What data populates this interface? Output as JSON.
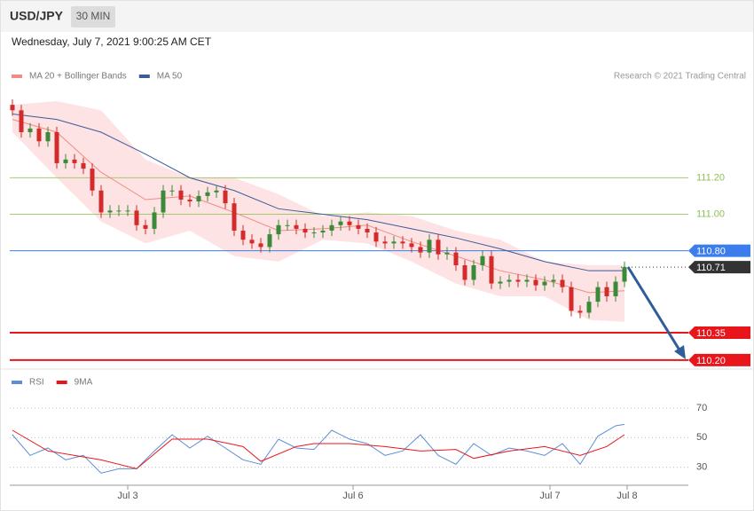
{
  "header": {
    "symbol": "USD/JPY",
    "timeframe": "30 MIN",
    "timestamp": "Wednesday, July 7, 2021 9:00:25 AM CET"
  },
  "chart_data": [
    {
      "type": "candlestick",
      "source": "Research © 2021 Trading Central",
      "xlim": [
        -0.3,
        76.2
      ],
      "ylim": [
        110.18,
        111.63
      ],
      "candles": {
        "open": [
          111.6,
          111.57,
          111.45,
          111.47,
          111.4,
          111.45,
          111.28,
          111.3,
          111.28,
          111.25,
          111.13,
          111.01,
          111.02,
          111.02,
          111.02,
          110.94,
          110.92,
          111.01,
          111.13,
          111.13,
          111.08,
          111.07,
          111.1,
          111.12,
          111.13,
          111.06,
          110.91,
          110.86,
          110.84,
          110.82,
          110.89,
          110.94,
          110.94,
          110.92,
          110.9,
          110.9,
          110.91,
          110.94,
          110.96,
          110.94,
          110.92,
          110.9,
          110.85,
          110.84,
          110.85,
          110.84,
          110.82,
          110.79,
          110.86,
          110.78,
          110.79,
          110.72,
          110.64,
          110.72,
          110.77,
          110.62,
          110.63,
          110.64,
          110.63,
          110.64,
          110.61,
          110.63,
          110.64,
          110.6,
          110.47,
          110.46,
          110.52,
          110.6,
          110.55,
          110.63
        ],
        "high": [
          111.63,
          111.6,
          111.5,
          111.5,
          111.48,
          111.48,
          111.33,
          111.33,
          111.31,
          111.28,
          111.16,
          111.05,
          111.05,
          111.05,
          111.05,
          110.97,
          111.04,
          111.16,
          111.16,
          111.16,
          111.11,
          111.13,
          111.15,
          111.16,
          111.16,
          111.09,
          110.94,
          110.89,
          110.87,
          110.92,
          110.97,
          110.97,
          110.97,
          110.95,
          110.93,
          110.94,
          110.97,
          110.99,
          110.99,
          110.97,
          110.95,
          110.93,
          110.88,
          110.88,
          110.88,
          110.87,
          110.85,
          110.89,
          110.89,
          110.82,
          110.82,
          110.75,
          110.75,
          110.8,
          110.8,
          110.66,
          110.67,
          110.67,
          110.67,
          110.67,
          110.66,
          110.67,
          110.67,
          110.63,
          110.5,
          110.55,
          110.63,
          110.63,
          110.66,
          110.74
        ],
        "low": [
          111.54,
          111.42,
          111.42,
          111.37,
          111.37,
          111.25,
          111.25,
          111.25,
          111.22,
          111.1,
          110.98,
          110.98,
          110.99,
          110.99,
          110.91,
          110.89,
          110.89,
          110.98,
          111.1,
          111.05,
          111.04,
          111.04,
          111.07,
          111.09,
          111.03,
          110.88,
          110.83,
          110.81,
          110.79,
          110.79,
          110.86,
          110.91,
          110.89,
          110.87,
          110.87,
          110.87,
          110.88,
          110.91,
          110.91,
          110.89,
          110.87,
          110.82,
          110.81,
          110.81,
          110.81,
          110.79,
          110.76,
          110.76,
          110.75,
          110.75,
          110.69,
          110.61,
          110.61,
          110.69,
          110.59,
          110.59,
          110.6,
          110.6,
          110.6,
          110.58,
          110.58,
          110.6,
          110.57,
          110.44,
          110.43,
          110.43,
          110.49,
          110.52,
          110.52,
          110.6
        ],
        "close": [
          111.57,
          111.45,
          111.47,
          111.4,
          111.45,
          111.28,
          111.3,
          111.28,
          111.25,
          111.13,
          111.01,
          111.02,
          111.02,
          111.02,
          110.94,
          110.92,
          111.01,
          111.13,
          111.13,
          111.08,
          111.07,
          111.1,
          111.12,
          111.13,
          111.06,
          110.91,
          110.86,
          110.84,
          110.82,
          110.89,
          110.94,
          110.94,
          110.92,
          110.9,
          110.9,
          110.91,
          110.94,
          110.96,
          110.94,
          110.92,
          110.9,
          110.85,
          110.84,
          110.85,
          110.84,
          110.82,
          110.79,
          110.86,
          110.78,
          110.79,
          110.72,
          110.64,
          110.72,
          110.77,
          110.62,
          110.63,
          110.64,
          110.63,
          110.64,
          110.61,
          110.63,
          110.64,
          110.6,
          110.47,
          110.46,
          110.52,
          110.6,
          110.55,
          110.63,
          110.71
        ],
        "up_color": "#3a8a3a",
        "down_color": "#d42a2a"
      },
      "series": [
        {
          "name": "MA 20 + Bollinger Bands",
          "color": "#f28b82",
          "band_color": "#fde3e3",
          "x": [
            0,
            5,
            10,
            15,
            20,
            25,
            30,
            35,
            40,
            45,
            50,
            55,
            60,
            65,
            69
          ],
          "values": [
            111.52,
            111.45,
            111.23,
            111.08,
            111.1,
            111.01,
            110.91,
            110.92,
            110.94,
            110.85,
            110.77,
            110.69,
            110.64,
            110.57,
            110.58
          ],
          "upper": [
            111.6,
            111.62,
            111.57,
            111.3,
            111.2,
            111.2,
            111.11,
            110.99,
            111.01,
            110.99,
            110.91,
            110.86,
            110.74,
            110.72,
            110.72
          ],
          "lower": [
            111.45,
            111.2,
            110.96,
            110.84,
            110.91,
            110.77,
            110.74,
            110.86,
            110.84,
            110.74,
            110.62,
            110.55,
            110.55,
            110.42,
            110.41
          ]
        },
        {
          "name": "MA 50",
          "color": "#3d5a99",
          "x": [
            0,
            5,
            10,
            15,
            20,
            25,
            30,
            35,
            40,
            45,
            50,
            55,
            60,
            65,
            69
          ],
          "values": [
            111.55,
            111.52,
            111.45,
            111.33,
            111.2,
            111.13,
            111.03,
            111.0,
            110.97,
            110.92,
            110.87,
            110.81,
            110.74,
            110.69,
            110.69
          ]
        }
      ],
      "levels": [
        {
          "value": 111.2,
          "label": "111.20",
          "color": "#8cc152",
          "style": "thin",
          "tag": false
        },
        {
          "value": 111.0,
          "label": "111.00",
          "color": "#8cc152",
          "style": "thin",
          "tag": false
        },
        {
          "value": 110.8,
          "label": "110.80",
          "color": "#3b7ded",
          "style": "solid",
          "tag": true
        },
        {
          "value": 110.71,
          "label": "110.71",
          "color": "#333333",
          "style": "dotted",
          "tag": true
        },
        {
          "value": 110.35,
          "label": "110.35",
          "color": "#e8161b",
          "style": "thick",
          "tag": true
        },
        {
          "value": 110.2,
          "label": "110.20",
          "color": "#e8161b",
          "style": "thick",
          "tag": true
        }
      ]
    },
    {
      "type": "line",
      "xlim": [
        -0.3,
        76.2
      ],
      "ylim": [
        19,
        79
      ],
      "yticks": [
        70,
        50,
        30
      ],
      "grid": true,
      "xticks": [
        {
          "value": 13,
          "label": "Jul 3"
        },
        {
          "value": 38.4,
          "label": "Jul 6"
        },
        {
          "value": 60.6,
          "label": "Jul 7"
        },
        {
          "value": 69.3,
          "label": "Jul 8"
        }
      ],
      "series": [
        {
          "name": "RSI",
          "color": "#5b8ed6",
          "x": [
            0,
            2,
            4,
            6,
            8,
            10,
            12,
            14,
            16,
            18,
            20,
            22,
            24,
            26,
            28,
            30,
            32,
            34,
            36,
            38,
            40,
            42,
            44,
            46,
            48,
            50,
            52,
            54,
            56,
            58,
            60,
            62,
            64,
            66,
            68,
            69
          ],
          "values": [
            52,
            38,
            43,
            35,
            38,
            26,
            29,
            29,
            41,
            52,
            43,
            51,
            43,
            35,
            32,
            49,
            43,
            42,
            55,
            49,
            46,
            38,
            41,
            52,
            38,
            32,
            46,
            38,
            43,
            41,
            38,
            46,
            32,
            51,
            58,
            59
          ]
        },
        {
          "name": "9MA",
          "color": "#e8161b",
          "x": [
            0,
            4,
            10,
            14,
            18,
            22,
            26,
            28,
            32,
            34,
            38,
            42,
            46,
            50,
            52,
            56,
            60,
            64,
            67,
            69
          ],
          "values": [
            55,
            41,
            35,
            29,
            49,
            49,
            44,
            34,
            44,
            46,
            46,
            44,
            41,
            42,
            36,
            41,
            44,
            38,
            44,
            52
          ]
        }
      ]
    }
  ]
}
